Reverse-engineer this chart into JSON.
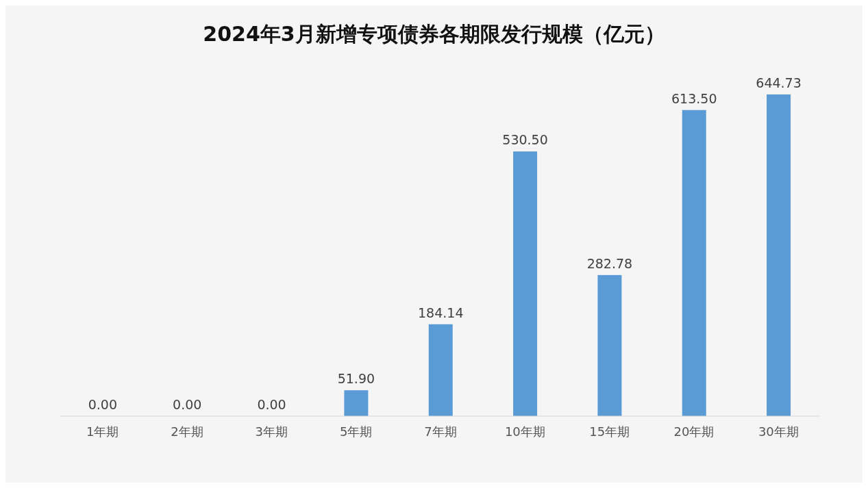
{
  "chart_data": {
    "type": "bar",
    "title": "2024年3月新增专项债券各期限发行规模（亿元）",
    "categories": [
      "1年期",
      "2年期",
      "3年期",
      "5年期",
      "7年期",
      "10年期",
      "15年期",
      "20年期",
      "30年期"
    ],
    "values": [
      0,
      0,
      0,
      51.9,
      184.14,
      530.5,
      282.78,
      613.5,
      644.73
    ],
    "value_labels": [
      "0.00",
      "0.00",
      "0.00",
      "51.90",
      "184.14",
      "530.50",
      "282.78",
      "613.50",
      "644.73"
    ],
    "color": "#5b9bd5",
    "grid": false
  }
}
